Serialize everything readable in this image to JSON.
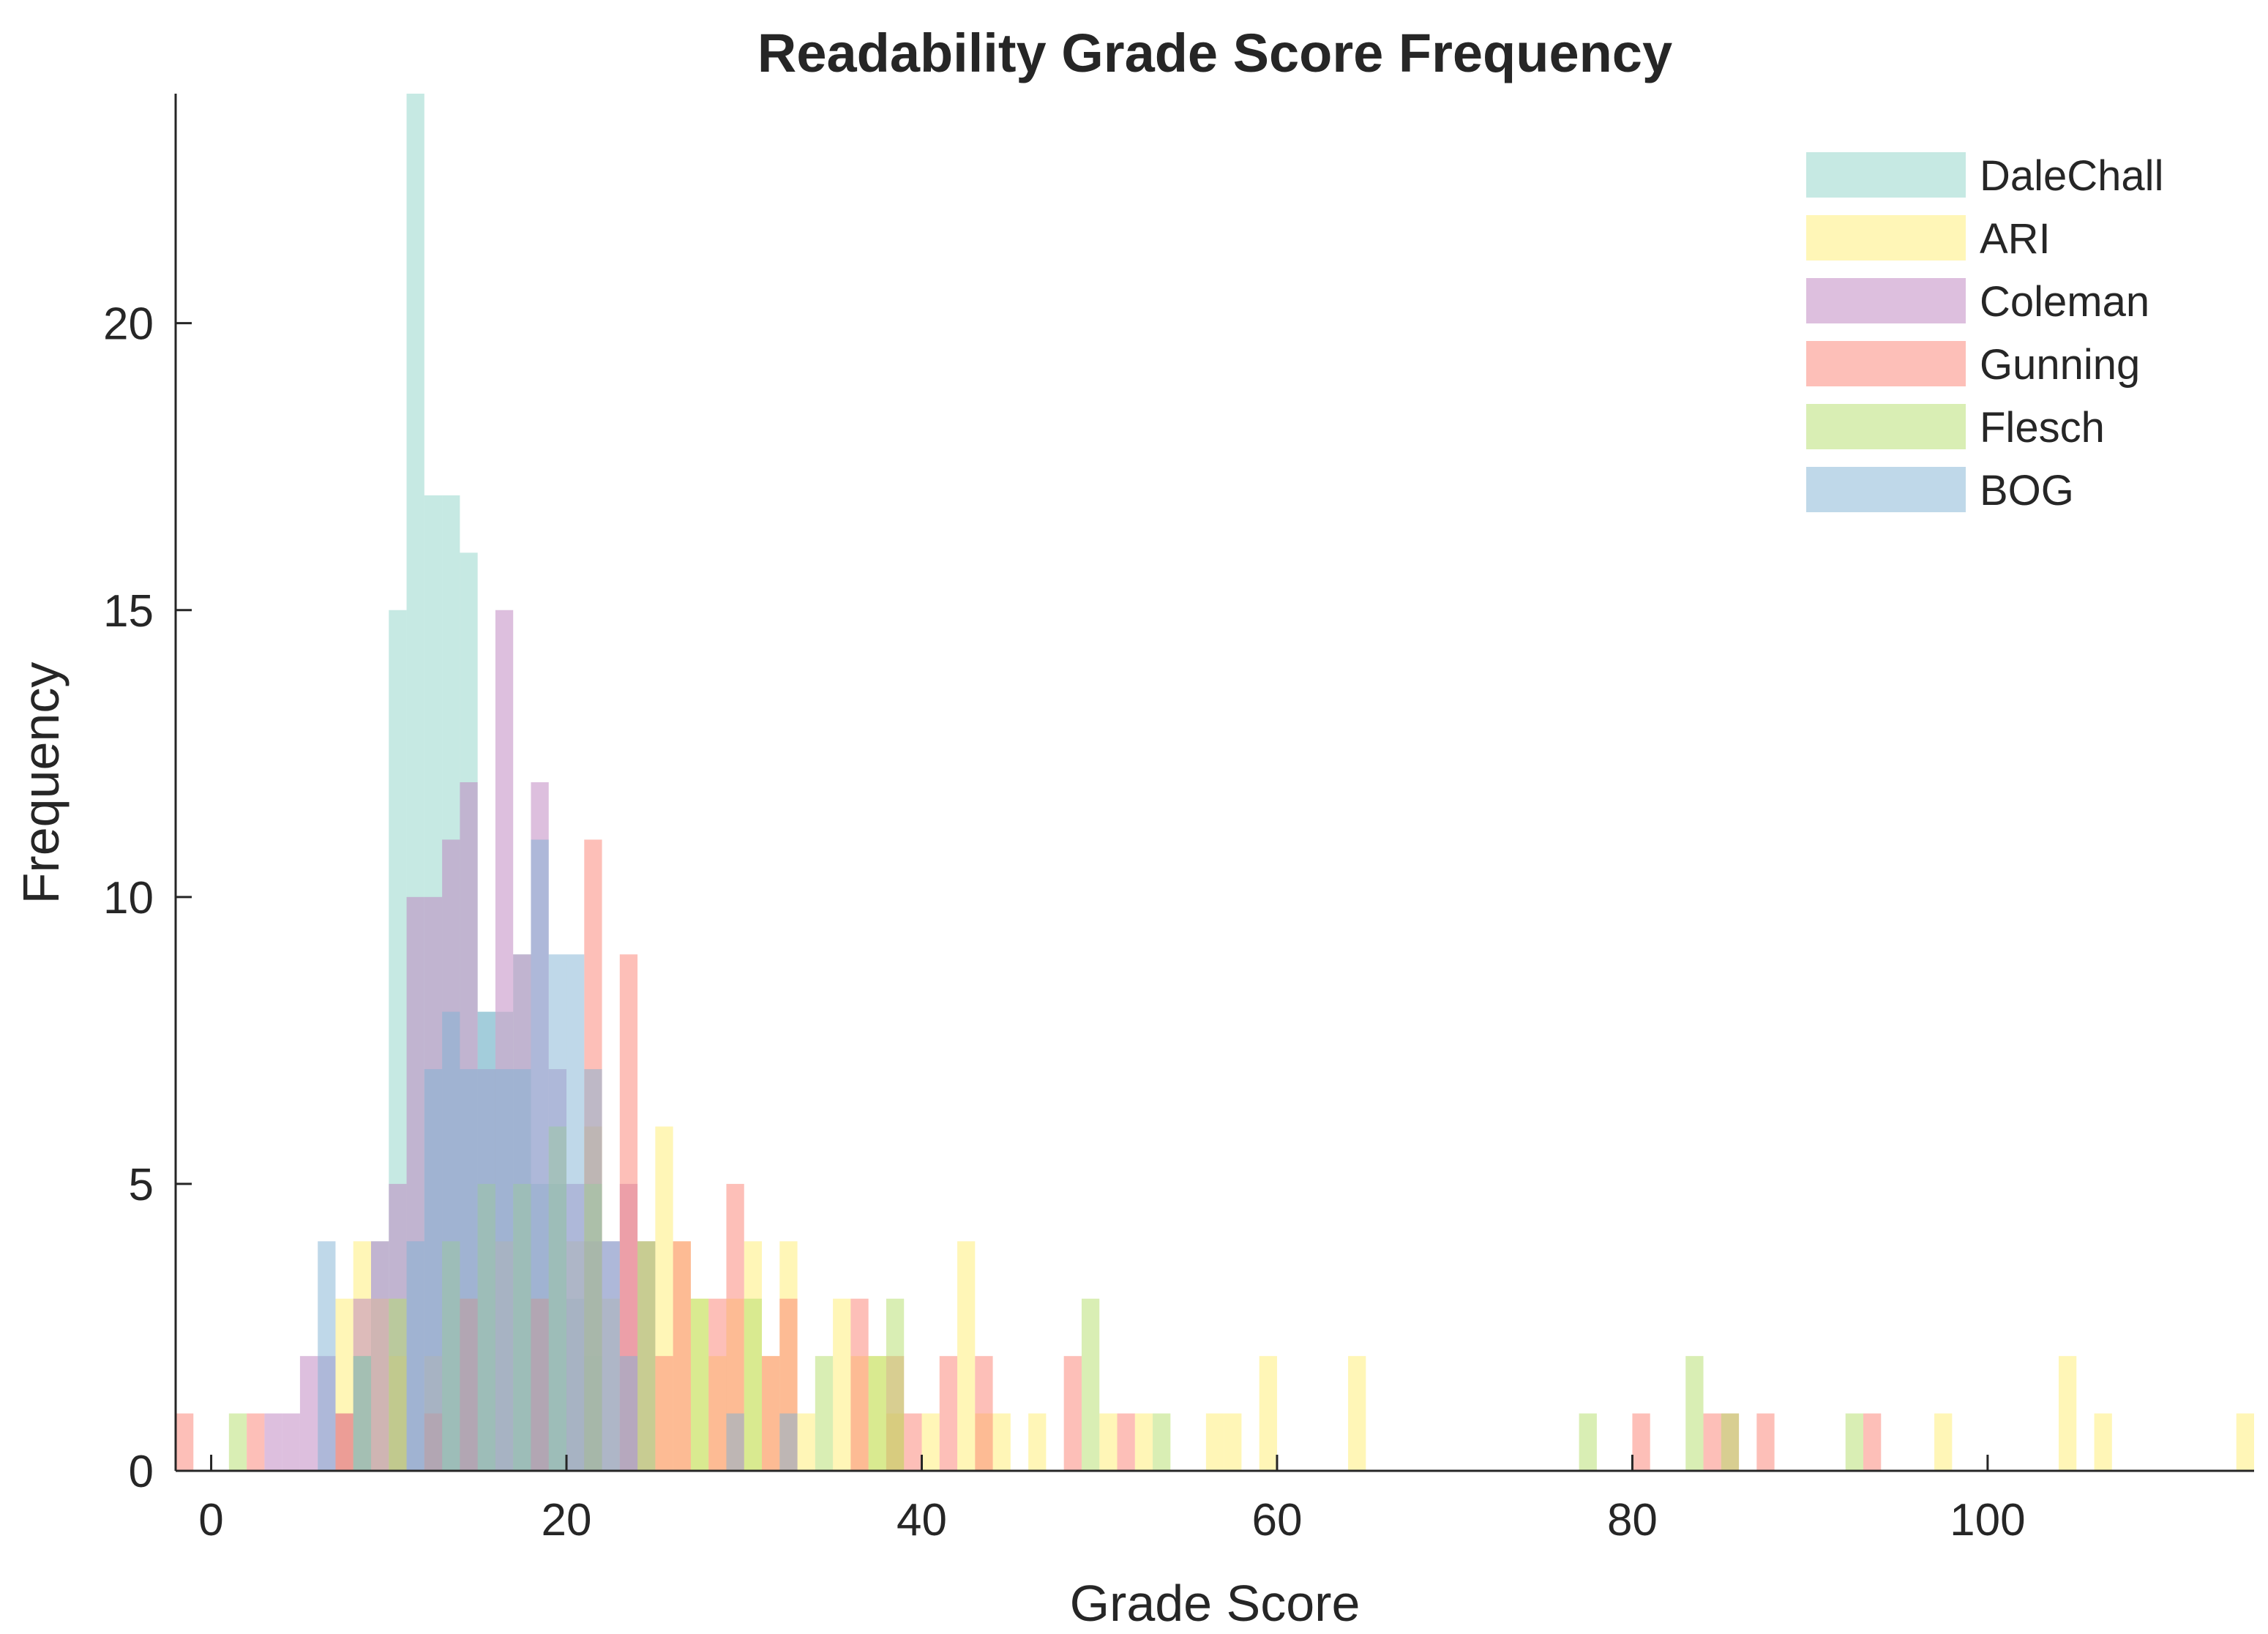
{
  "chart_data": {
    "type": "histogram",
    "title": "Readability Grade Score Frequency",
    "xlabel": "Grade Score",
    "ylabel": "Frequency",
    "xlim": [
      -2,
      115
    ],
    "ylim": [
      0,
      24
    ],
    "bin_width": 1,
    "xticks": [
      "0",
      "20",
      "40",
      "60",
      "80",
      "100"
    ],
    "yticks": [
      "0",
      "5",
      "10",
      "15",
      "20"
    ],
    "legend_position": "top-right",
    "grid": false,
    "series": [
      {
        "name": "DaleChall",
        "color": "#8dd3c7",
        "bins": [
          [
            9,
            4
          ],
          [
            10,
            15
          ],
          [
            11,
            24
          ],
          [
            12,
            17
          ],
          [
            13,
            17
          ],
          [
            14,
            16
          ],
          [
            15,
            8
          ],
          [
            16,
            8
          ],
          [
            17,
            9
          ],
          [
            18,
            5
          ],
          [
            19,
            5
          ],
          [
            20,
            3
          ],
          [
            21,
            2
          ]
        ]
      },
      {
        "name": "ARI",
        "color": "#ffed6f",
        "bins": [
          [
            7,
            3
          ],
          [
            8,
            4
          ],
          [
            9,
            3
          ],
          [
            10,
            2
          ],
          [
            12,
            2
          ],
          [
            14,
            3
          ],
          [
            16,
            4
          ],
          [
            18,
            3
          ],
          [
            20,
            4
          ],
          [
            21,
            6
          ],
          [
            22,
            3
          ],
          [
            24,
            4
          ],
          [
            25,
            6
          ],
          [
            26,
            4
          ],
          [
            27,
            3
          ],
          [
            28,
            2
          ],
          [
            29,
            3
          ],
          [
            30,
            4
          ],
          [
            31,
            2
          ],
          [
            32,
            4
          ],
          [
            33,
            1
          ],
          [
            35,
            3
          ],
          [
            36,
            2
          ],
          [
            37,
            2
          ],
          [
            38,
            1
          ],
          [
            40,
            1
          ],
          [
            42,
            4
          ],
          [
            43,
            1
          ],
          [
            44,
            1
          ],
          [
            46,
            1
          ],
          [
            50,
            1
          ],
          [
            52,
            1
          ],
          [
            56,
            1
          ],
          [
            57,
            1
          ],
          [
            59,
            2
          ],
          [
            64,
            2
          ],
          [
            97,
            1
          ],
          [
            104,
            2
          ],
          [
            106,
            1
          ],
          [
            114,
            1
          ]
        ]
      },
      {
        "name": "Coleman",
        "color": "#bc80bd",
        "bins": [
          [
            3,
            1
          ],
          [
            4,
            1
          ],
          [
            5,
            2
          ],
          [
            6,
            2
          ],
          [
            7,
            1
          ],
          [
            8,
            3
          ],
          [
            9,
            4
          ],
          [
            10,
            5
          ],
          [
            11,
            10
          ],
          [
            12,
            10
          ],
          [
            13,
            11
          ],
          [
            14,
            12
          ],
          [
            15,
            7
          ],
          [
            16,
            15
          ],
          [
            17,
            9
          ],
          [
            18,
            12
          ],
          [
            19,
            7
          ],
          [
            20,
            5
          ],
          [
            21,
            4
          ],
          [
            22,
            4
          ],
          [
            23,
            5
          ],
          [
            24,
            4
          ]
        ]
      },
      {
        "name": "Gunning",
        "color": "#fb8072",
        "bins": [
          [
            -2,
            1
          ],
          [
            2,
            1
          ],
          [
            7,
            1
          ],
          [
            12,
            1
          ],
          [
            14,
            3
          ],
          [
            18,
            3
          ],
          [
            21,
            11
          ],
          [
            23,
            9
          ],
          [
            25,
            2
          ],
          [
            26,
            4
          ],
          [
            28,
            3
          ],
          [
            29,
            5
          ],
          [
            31,
            2
          ],
          [
            32,
            3
          ],
          [
            36,
            3
          ],
          [
            38,
            2
          ],
          [
            39,
            1
          ],
          [
            41,
            2
          ],
          [
            43,
            2
          ],
          [
            48,
            2
          ],
          [
            51,
            1
          ],
          [
            80,
            1
          ],
          [
            84,
            1
          ],
          [
            85,
            1
          ],
          [
            87,
            1
          ],
          [
            93,
            1
          ]
        ]
      },
      {
        "name": "Flesch",
        "color": "#b3de69",
        "bins": [
          [
            1,
            1
          ],
          [
            8,
            2
          ],
          [
            10,
            3
          ],
          [
            13,
            4
          ],
          [
            15,
            5
          ],
          [
            17,
            5
          ],
          [
            19,
            6
          ],
          [
            21,
            5
          ],
          [
            24,
            4
          ],
          [
            27,
            3
          ],
          [
            30,
            3
          ],
          [
            34,
            2
          ],
          [
            37,
            2
          ],
          [
            38,
            3
          ],
          [
            49,
            3
          ],
          [
            53,
            1
          ],
          [
            77,
            1
          ],
          [
            83,
            2
          ],
          [
            85,
            1
          ],
          [
            92,
            1
          ]
        ]
      },
      {
        "name": "BOG",
        "color": "#80b1d3",
        "bins": [
          [
            6,
            4
          ],
          [
            8,
            2
          ],
          [
            11,
            4
          ],
          [
            12,
            7
          ],
          [
            13,
            8
          ],
          [
            14,
            7
          ],
          [
            15,
            8
          ],
          [
            16,
            7
          ],
          [
            17,
            7
          ],
          [
            18,
            11
          ],
          [
            19,
            9
          ],
          [
            20,
            9
          ],
          [
            21,
            7
          ],
          [
            22,
            4
          ],
          [
            23,
            2
          ],
          [
            29,
            1
          ],
          [
            32,
            1
          ]
        ]
      }
    ]
  }
}
